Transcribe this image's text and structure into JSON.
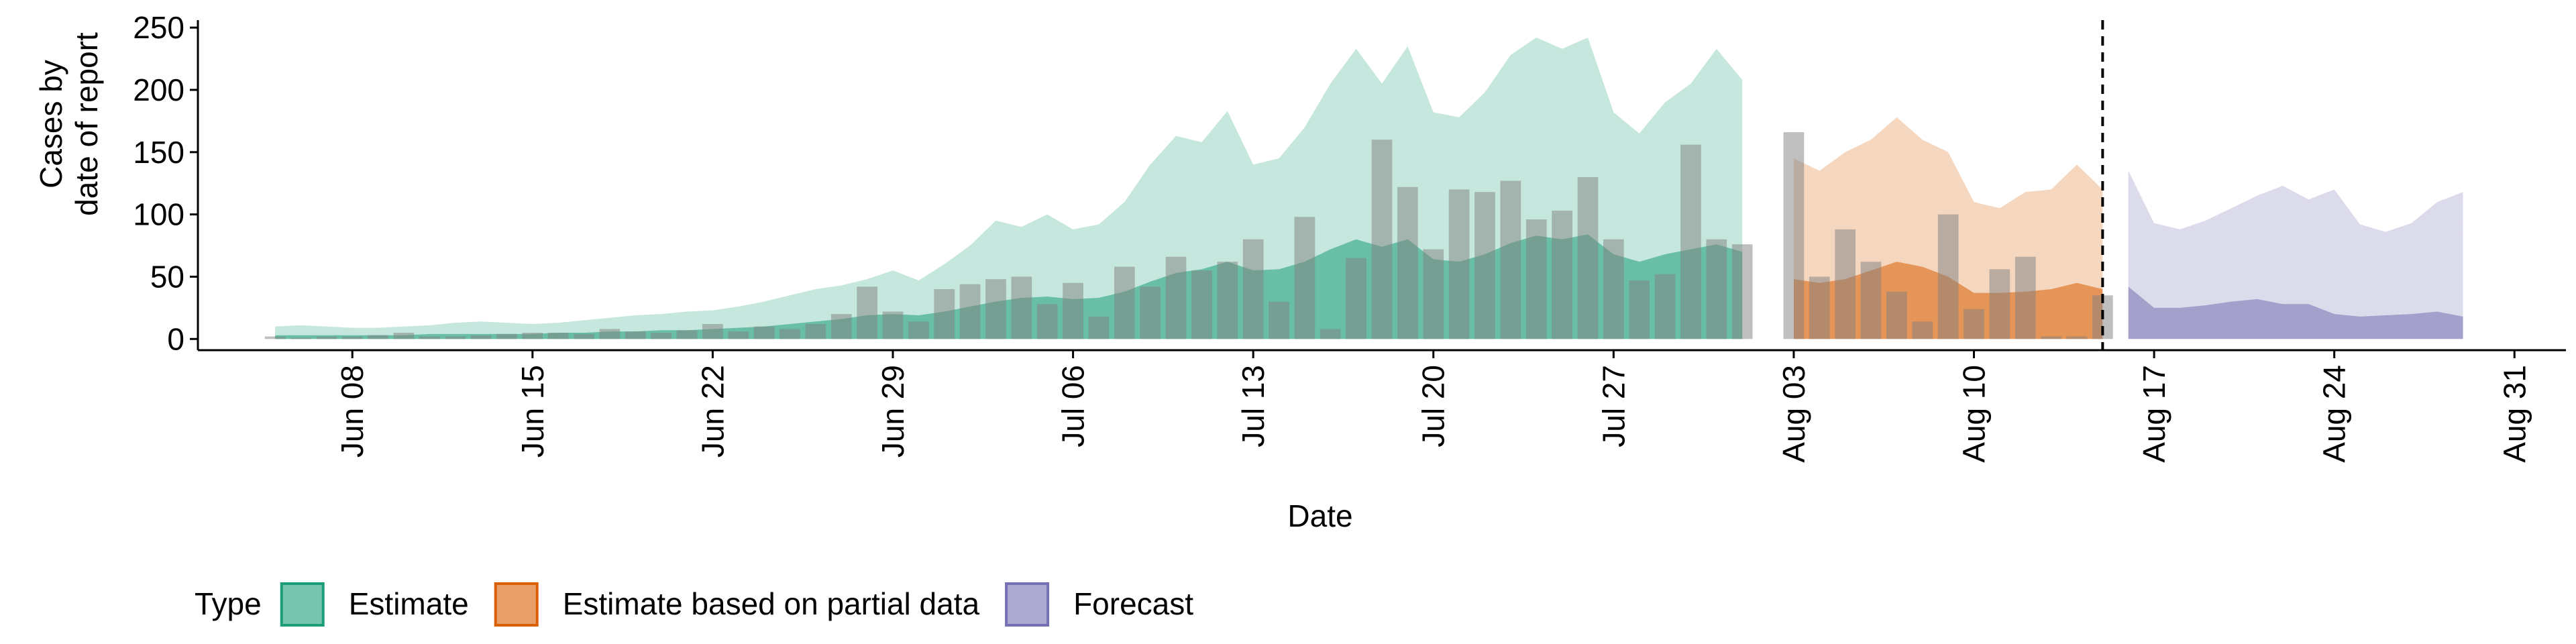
{
  "chart_data": {
    "type": "area",
    "y_label": [
      "Cases by",
      "date of report"
    ],
    "x_label": "Date",
    "legend_title": "Type",
    "legend_position": "bottom",
    "xlim": [
      "Jun 02",
      "Sep 02"
    ],
    "xticks": [
      "Jun 08",
      "Jun 15",
      "Jun 22",
      "Jun 29",
      "Jul 06",
      "Jul 13",
      "Jul 20",
      "Jul 27",
      "Aug 03",
      "Aug 10",
      "Aug 17",
      "Aug 24",
      "Aug 31"
    ],
    "ylim": [
      -9,
      256
    ],
    "yticks": [
      0,
      50,
      100,
      150,
      200,
      250
    ],
    "vline": "Aug 15",
    "series": [
      {
        "name": "Estimate",
        "color": "#1b9e77",
        "x": [
          "Jun 05",
          "Jun 06",
          "Jun 07",
          "Jun 08",
          "Jun 09",
          "Jun 10",
          "Jun 11",
          "Jun 12",
          "Jun 13",
          "Jun 14",
          "Jun 15",
          "Jun 16",
          "Jun 17",
          "Jun 18",
          "Jun 19",
          "Jun 20",
          "Jun 21",
          "Jun 22",
          "Jun 23",
          "Jun 24",
          "Jun 25",
          "Jun 26",
          "Jun 27",
          "Jun 28",
          "Jun 29",
          "Jun 30",
          "Jul 01",
          "Jul 02",
          "Jul 03",
          "Jul 04",
          "Jul 05",
          "Jul 06",
          "Jul 07",
          "Jul 08",
          "Jul 09",
          "Jul 10",
          "Jul 11",
          "Jul 12",
          "Jul 13",
          "Jul 14",
          "Jul 15",
          "Jul 16",
          "Jul 17",
          "Jul 18",
          "Jul 19",
          "Jul 20",
          "Jul 21",
          "Jul 22",
          "Jul 23",
          "Jul 24",
          "Jul 25",
          "Jul 26",
          "Jul 27",
          "Jul 28",
          "Jul 29",
          "Jul 30",
          "Jul 31",
          "Aug 01"
        ],
        "values": [
          10,
          11,
          10,
          9,
          9,
          10,
          11,
          13,
          14,
          13,
          12,
          13,
          15,
          17,
          19,
          20,
          22,
          23,
          26,
          30,
          35,
          40,
          43,
          48,
          55,
          47,
          60,
          75,
          95,
          90,
          100,
          88,
          92,
          110,
          140,
          163,
          158,
          183,
          140,
          145,
          170,
          205,
          233,
          205,
          235,
          182,
          178,
          198,
          228,
          242,
          233,
          242,
          182,
          165,
          190,
          205,
          233,
          208
        ],
        "inner": [
          3,
          3,
          3,
          3,
          3,
          3,
          4,
          4,
          4,
          4,
          4,
          5,
          5,
          6,
          6,
          7,
          7,
          8,
          9,
          10,
          12,
          14,
          16,
          19,
          20,
          19,
          22,
          26,
          30,
          33,
          34,
          32,
          33,
          38,
          46,
          53,
          56,
          62,
          55,
          56,
          62,
          72,
          80,
          74,
          80,
          64,
          62,
          68,
          77,
          83,
          80,
          84,
          68,
          62,
          68,
          72,
          76,
          70
        ]
      },
      {
        "name": "Estimate based on partial data",
        "color": "#d95f02",
        "x": [
          "Aug 03",
          "Aug 04",
          "Aug 05",
          "Aug 06",
          "Aug 07",
          "Aug 08",
          "Aug 09",
          "Aug 10",
          "Aug 11",
          "Aug 12",
          "Aug 13",
          "Aug 14",
          "Aug 15"
        ],
        "values": [
          145,
          135,
          150,
          160,
          178,
          160,
          150,
          110,
          105,
          118,
          120,
          140,
          120
        ],
        "inner": [
          48,
          45,
          48,
          55,
          62,
          58,
          50,
          37,
          37,
          38,
          40,
          45,
          40
        ]
      },
      {
        "name": "Forecast",
        "color": "#7570b3",
        "x": [
          "Aug 16",
          "Aug 17",
          "Aug 18",
          "Aug 19",
          "Aug 20",
          "Aug 21",
          "Aug 22",
          "Aug 23",
          "Aug 24",
          "Aug 25",
          "Aug 26",
          "Aug 27",
          "Aug 28",
          "Aug 29"
        ],
        "values": [
          135,
          93,
          88,
          95,
          105,
          115,
          123,
          112,
          120,
          92,
          86,
          93,
          110,
          118
        ],
        "inner": [
          42,
          25,
          25,
          27,
          30,
          32,
          28,
          28,
          20,
          18,
          19,
          20,
          22,
          18
        ]
      }
    ],
    "bars": {
      "color": "#808080",
      "x": [
        "Jun 05",
        "Jun 06",
        "Jun 07",
        "Jun 08",
        "Jun 09",
        "Jun 10",
        "Jun 11",
        "Jun 12",
        "Jun 13",
        "Jun 14",
        "Jun 15",
        "Jun 16",
        "Jun 17",
        "Jun 18",
        "Jun 19",
        "Jun 20",
        "Jun 21",
        "Jun 22",
        "Jun 23",
        "Jun 24",
        "Jun 25",
        "Jun 26",
        "Jun 27",
        "Jun 28",
        "Jun 29",
        "Jun 30",
        "Jul 01",
        "Jul 02",
        "Jul 03",
        "Jul 04",
        "Jul 05",
        "Jul 06",
        "Jul 07",
        "Jul 08",
        "Jul 09",
        "Jul 10",
        "Jul 11",
        "Jul 12",
        "Jul 13",
        "Jul 14",
        "Jul 15",
        "Jul 16",
        "Jul 17",
        "Jul 18",
        "Jul 19",
        "Jul 20",
        "Jul 21",
        "Jul 22",
        "Jul 23",
        "Jul 24",
        "Jul 25",
        "Jul 26",
        "Jul 27",
        "Jul 28",
        "Jul 29",
        "Jul 30",
        "Jul 31",
        "Aug 01",
        "Aug 02",
        "Aug 03",
        "Aug 04",
        "Aug 05",
        "Aug 06",
        "Aug 07",
        "Aug 08",
        "Aug 09",
        "Aug 10",
        "Aug 11",
        "Aug 12",
        "Aug 13",
        "Aug 14",
        "Aug 15"
      ],
      "values": [
        2,
        1,
        2,
        2,
        3,
        5,
        2,
        2,
        3,
        4,
        5,
        5,
        4,
        8,
        6,
        5,
        7,
        12,
        6,
        10,
        8,
        12,
        20,
        42,
        22,
        14,
        40,
        44,
        48,
        50,
        28,
        45,
        18,
        58,
        42,
        66,
        55,
        62,
        80,
        30,
        98,
        8,
        65,
        160,
        122,
        72,
        120,
        118,
        127,
        96,
        103,
        130,
        80,
        47,
        52,
        156,
        80,
        76,
        0,
        166,
        50,
        88,
        62,
        38,
        14,
        100,
        24,
        56,
        66,
        2,
        2,
        35
      ]
    }
  }
}
